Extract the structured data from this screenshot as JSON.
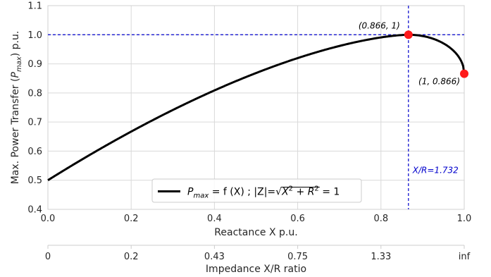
{
  "chart_data": {
    "type": "line",
    "xlabel": "Reactance X p.u.",
    "ylabel_parts": [
      "Max. Power Transfer (",
      "P",
      "max",
      ") p.u."
    ],
    "xlim": [
      0.0,
      1.0
    ],
    "ylim": [
      0.4,
      1.1
    ],
    "x_ticks": [
      "0.0",
      "0.2",
      "0.4",
      "0.6",
      "0.8",
      "1.0"
    ],
    "y_ticks": [
      "0.4",
      "0.5",
      "0.6",
      "0.7",
      "0.8",
      "0.9",
      "1.0",
      "1.1"
    ],
    "grid": true,
    "series": [
      {
        "name": "P_max = f (X) ; |Z|=sqrt(X^2 + R^2) = 1",
        "color": "#000000",
        "x": [
          0.0,
          0.1,
          0.2,
          0.3,
          0.4,
          0.5,
          0.6,
          0.7,
          0.8,
          0.866,
          0.9,
          0.95,
          0.98,
          1.0
        ],
        "y": [
          0.5,
          0.5832,
          0.6633,
          0.7385,
          0.8071,
          0.866,
          0.9123,
          0.9412,
          0.9428,
          1.0,
          0.9939,
          0.969,
          0.9308,
          0.866
        ]
      }
    ],
    "secondary_x_axis": {
      "label": "Impedance X/R ratio",
      "tick_values": [
        0.0,
        0.2,
        0.4,
        0.6,
        0.8,
        1.0
      ],
      "tick_labels": [
        "0",
        "0.2",
        "0.43",
        "0.75",
        "1.33",
        "inf"
      ]
    },
    "reference_lines": [
      {
        "orientation": "horizontal",
        "value": 1.0,
        "color": "#0000cc",
        "style": "dashed"
      },
      {
        "orientation": "vertical",
        "value": 0.866,
        "color": "#0000cc",
        "style": "dashed",
        "label": "X/R=1.732"
      }
    ],
    "points": [
      {
        "x": 0.866,
        "y": 1.0,
        "label": "(0.866, 1)",
        "color": "#ff1a1a"
      },
      {
        "x": 1.0,
        "y": 0.866,
        "label": "(1, 0.866)",
        "color": "#ff1a1a"
      }
    ],
    "legend": {
      "placement": "bottom-center",
      "prefix": "P",
      "sub": "max",
      "mid": " = f (X) ; |Z|=",
      "radicand_base": "X",
      "radicand_plus": " + ",
      "radicand_base2": "R",
      "exp": "2",
      "suffix": " = 1"
    }
  }
}
